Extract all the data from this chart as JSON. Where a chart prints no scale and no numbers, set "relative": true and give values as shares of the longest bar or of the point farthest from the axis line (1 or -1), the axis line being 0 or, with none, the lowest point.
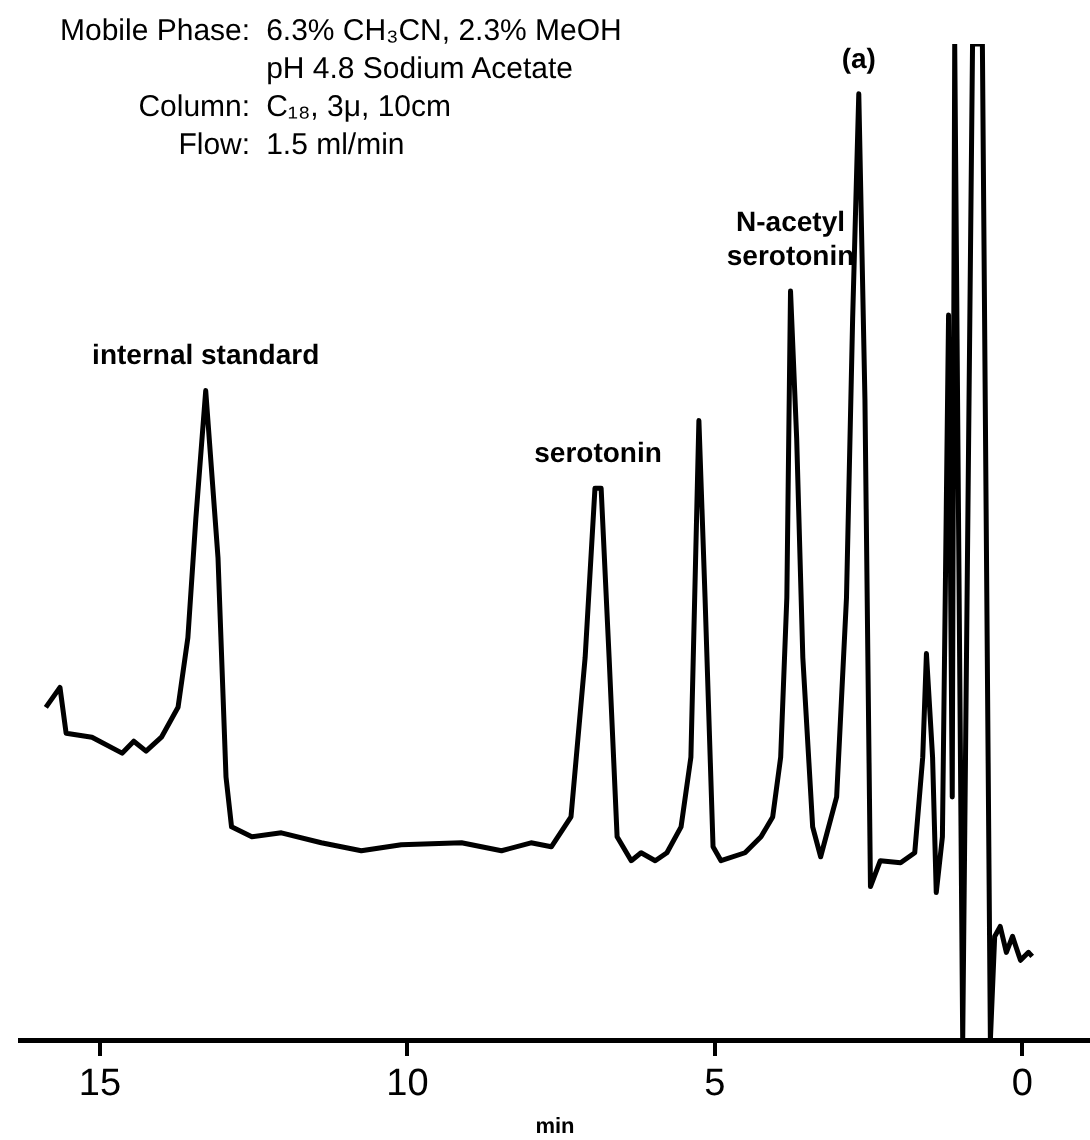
{
  "chart_data": {
    "type": "line",
    "relative": true,
    "xlabel": "min",
    "xlim": [
      16.3,
      -1.1
    ],
    "xticks": [
      15,
      10,
      5,
      0
    ],
    "grid": false,
    "legend": false,
    "marker": "none",
    "line_style": "solid",
    "annotations": [
      "Mobile Phase: 6.3% CH₃CN, 2.3% MeOH",
      "pH 4.8 Sodium Acetate",
      "Column: C₁₈, 3μ, 10cm",
      "Flow: 1.5 ml/min",
      {
        "text": "internal standard",
        "x": 13.28,
        "y": 0.652
      },
      {
        "text": "serotonin",
        "x": 6.9,
        "y": 0.554
      },
      {
        "text": "N-acetyl\nserotonin",
        "x": 3.77,
        "y": 0.752
      },
      {
        "text": "(a)",
        "x": 2.66,
        "y": 0.95
      }
    ],
    "series": [
      {
        "color": "#000000",
        "x": [
          15.88,
          15.65,
          15.55,
          15.13,
          14.64,
          14.45,
          14.25,
          14.0,
          13.73,
          13.57,
          13.44,
          13.28,
          13.08,
          12.95,
          12.86,
          12.53,
          12.05,
          11.4,
          10.75,
          10.1,
          9.12,
          8.47,
          7.99,
          7.66,
          7.34,
          7.11,
          6.95,
          6.85,
          6.72,
          6.59,
          6.36,
          6.2,
          5.97,
          5.78,
          5.55,
          5.39,
          5.26,
          5.16,
          5.03,
          4.9,
          4.51,
          4.25,
          4.06,
          3.93,
          3.83,
          3.77,
          3.67,
          3.57,
          3.41,
          3.28,
          3.02,
          2.86,
          2.76,
          2.66,
          2.56,
          2.47,
          2.31,
          1.98,
          1.75,
          1.62,
          1.56,
          1.46,
          1.4,
          1.3,
          1.2,
          1.14,
          1.1,
          0.97,
          0.81,
          0.65,
          0.52,
          0.45,
          0.36,
          0.26,
          0.16,
          0.03,
          -0.1,
          -0.16
        ],
        "values": [
          0.334,
          0.354,
          0.308,
          0.304,
          0.288,
          0.3,
          0.29,
          0.304,
          0.334,
          0.404,
          0.524,
          0.652,
          0.484,
          0.264,
          0.214,
          0.204,
          0.208,
          0.198,
          0.19,
          0.196,
          0.198,
          0.19,
          0.198,
          0.194,
          0.224,
          0.384,
          0.554,
          0.554,
          0.384,
          0.204,
          0.18,
          0.188,
          0.18,
          0.188,
          0.214,
          0.284,
          0.622,
          0.444,
          0.194,
          0.18,
          0.188,
          0.204,
          0.224,
          0.284,
          0.444,
          0.752,
          0.604,
          0.384,
          0.214,
          0.184,
          0.244,
          0.444,
          0.724,
          0.95,
          0.644,
          0.154,
          0.18,
          0.178,
          0.188,
          0.284,
          0.388,
          0.284,
          0.148,
          0.204,
          0.728,
          0.244,
          1.0,
          0,
          1.0,
          1.0,
          0,
          0.104,
          0.114,
          0.088,
          0.104,
          0.08,
          0.088,
          0.084
        ]
      }
    ]
  }
}
